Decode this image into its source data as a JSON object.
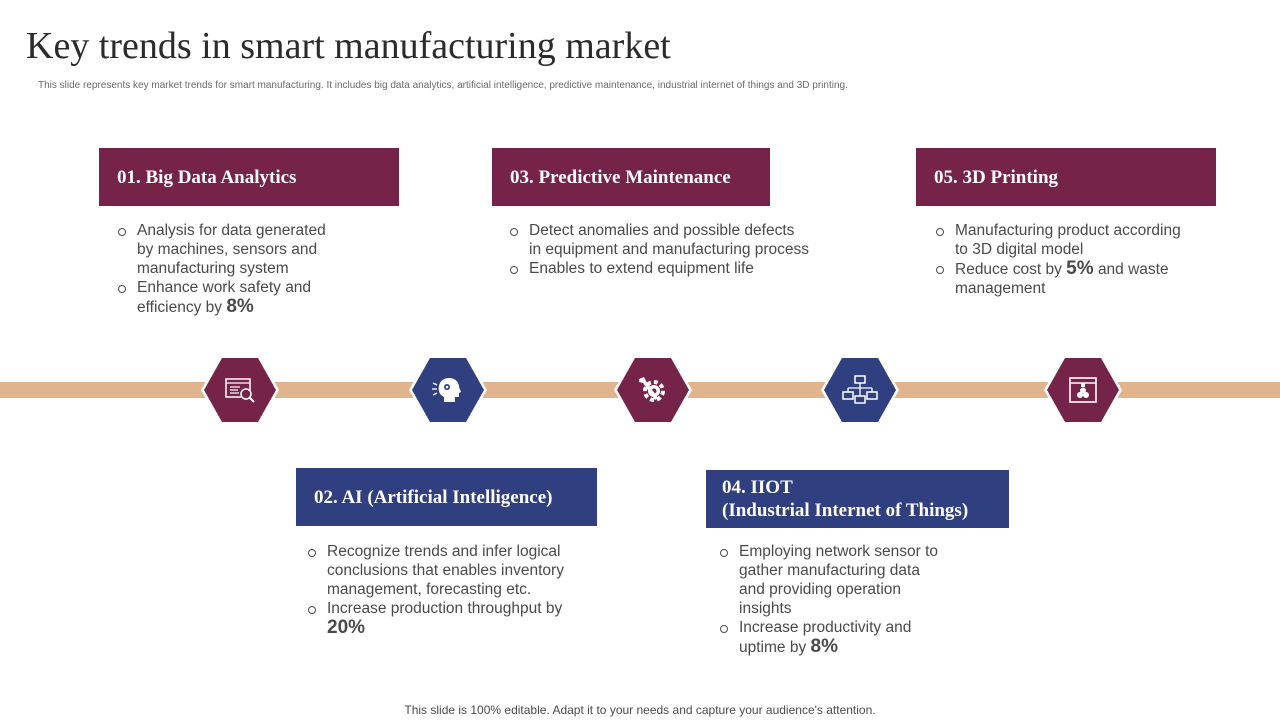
{
  "title": "Key trends in smart manufacturing market",
  "subtitle": "This slide represents key market trends for smart manufacturing. It includes big data analytics, artificial intelligence, predictive maintenance, industrial internet of things and 3D printing.",
  "footer": "This slide is 100% editable. Adapt it to your needs and capture your audience's attention.",
  "colors": {
    "maroon": "#76234a",
    "navy": "#2f3f7f",
    "band": "#e2b48d"
  },
  "trends": [
    {
      "heading": "01. Big Data Analytics",
      "icon": "data-analysis-icon",
      "bullets": [
        {
          "text": "Analysis for data generated by machines, sensors and manufacturing system",
          "highlight": ""
        },
        {
          "text": "Enhance work safety and efficiency by",
          "highlight": "8%"
        }
      ]
    },
    {
      "heading": "02. AI (Artificial Intelligence)",
      "icon": "ai-head-icon",
      "bullets": [
        {
          "text": "Recognize trends and infer logical conclusions that enables inventory management, forecasting etc.",
          "highlight": ""
        },
        {
          "text": "Increase production throughput  by",
          "highlight": "20%"
        }
      ]
    },
    {
      "heading": "03. Predictive Maintenance",
      "icon": "wrench-gear-icon",
      "bullets": [
        {
          "text": "Detect anomalies and possible defects in equipment and manufacturing process",
          "highlight": ""
        },
        {
          "text": "Enables to extend equipment life",
          "highlight": ""
        }
      ]
    },
    {
      "heading_line1": "04. IIOT",
      "heading_line2": "(Industrial Internet of Things)",
      "icon": "network-icon",
      "bullets": [
        {
          "text": "Employing network sensor to gather manufacturing data and providing operation insights",
          "highlight": ""
        },
        {
          "text": "Increase productivity and uptime by",
          "highlight": "8%"
        }
      ]
    },
    {
      "heading": "05. 3D Printing",
      "icon": "3d-printer-icon",
      "bullets": [
        {
          "text": "Manufacturing product according to 3D digital model",
          "highlight": ""
        },
        {
          "text_before": "Reduce cost by",
          "highlight": "5%",
          "text_after": "and waste management"
        }
      ]
    }
  ]
}
